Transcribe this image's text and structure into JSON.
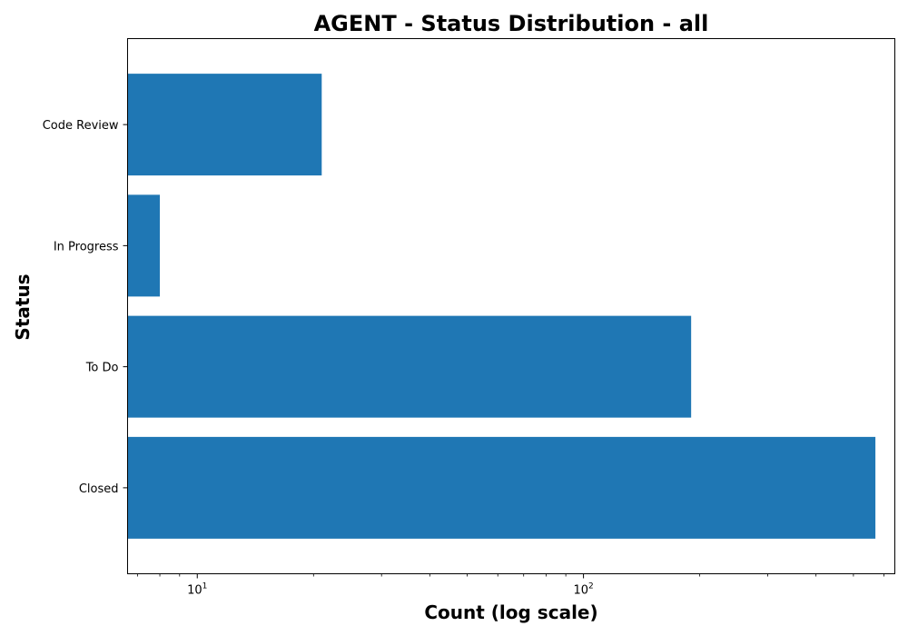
{
  "chart_data": {
    "type": "bar",
    "orientation": "horizontal",
    "title": "AGENT - Status Distribution - all",
    "xlabel": "Count (log scale)",
    "ylabel": "Status",
    "x_scale": "log",
    "xlim": [
      6.6,
      640
    ],
    "categories": [
      "Closed",
      "To Do",
      "In Progress",
      "Code Review"
    ],
    "values": [
      570,
      190,
      8,
      21
    ],
    "x_ticks": [
      {
        "base": "10",
        "exp": "1",
        "value": 10
      },
      {
        "base": "10",
        "exp": "2",
        "value": 100
      }
    ],
    "bar_color": "#1f77b4",
    "grid": false,
    "legend": "none"
  }
}
